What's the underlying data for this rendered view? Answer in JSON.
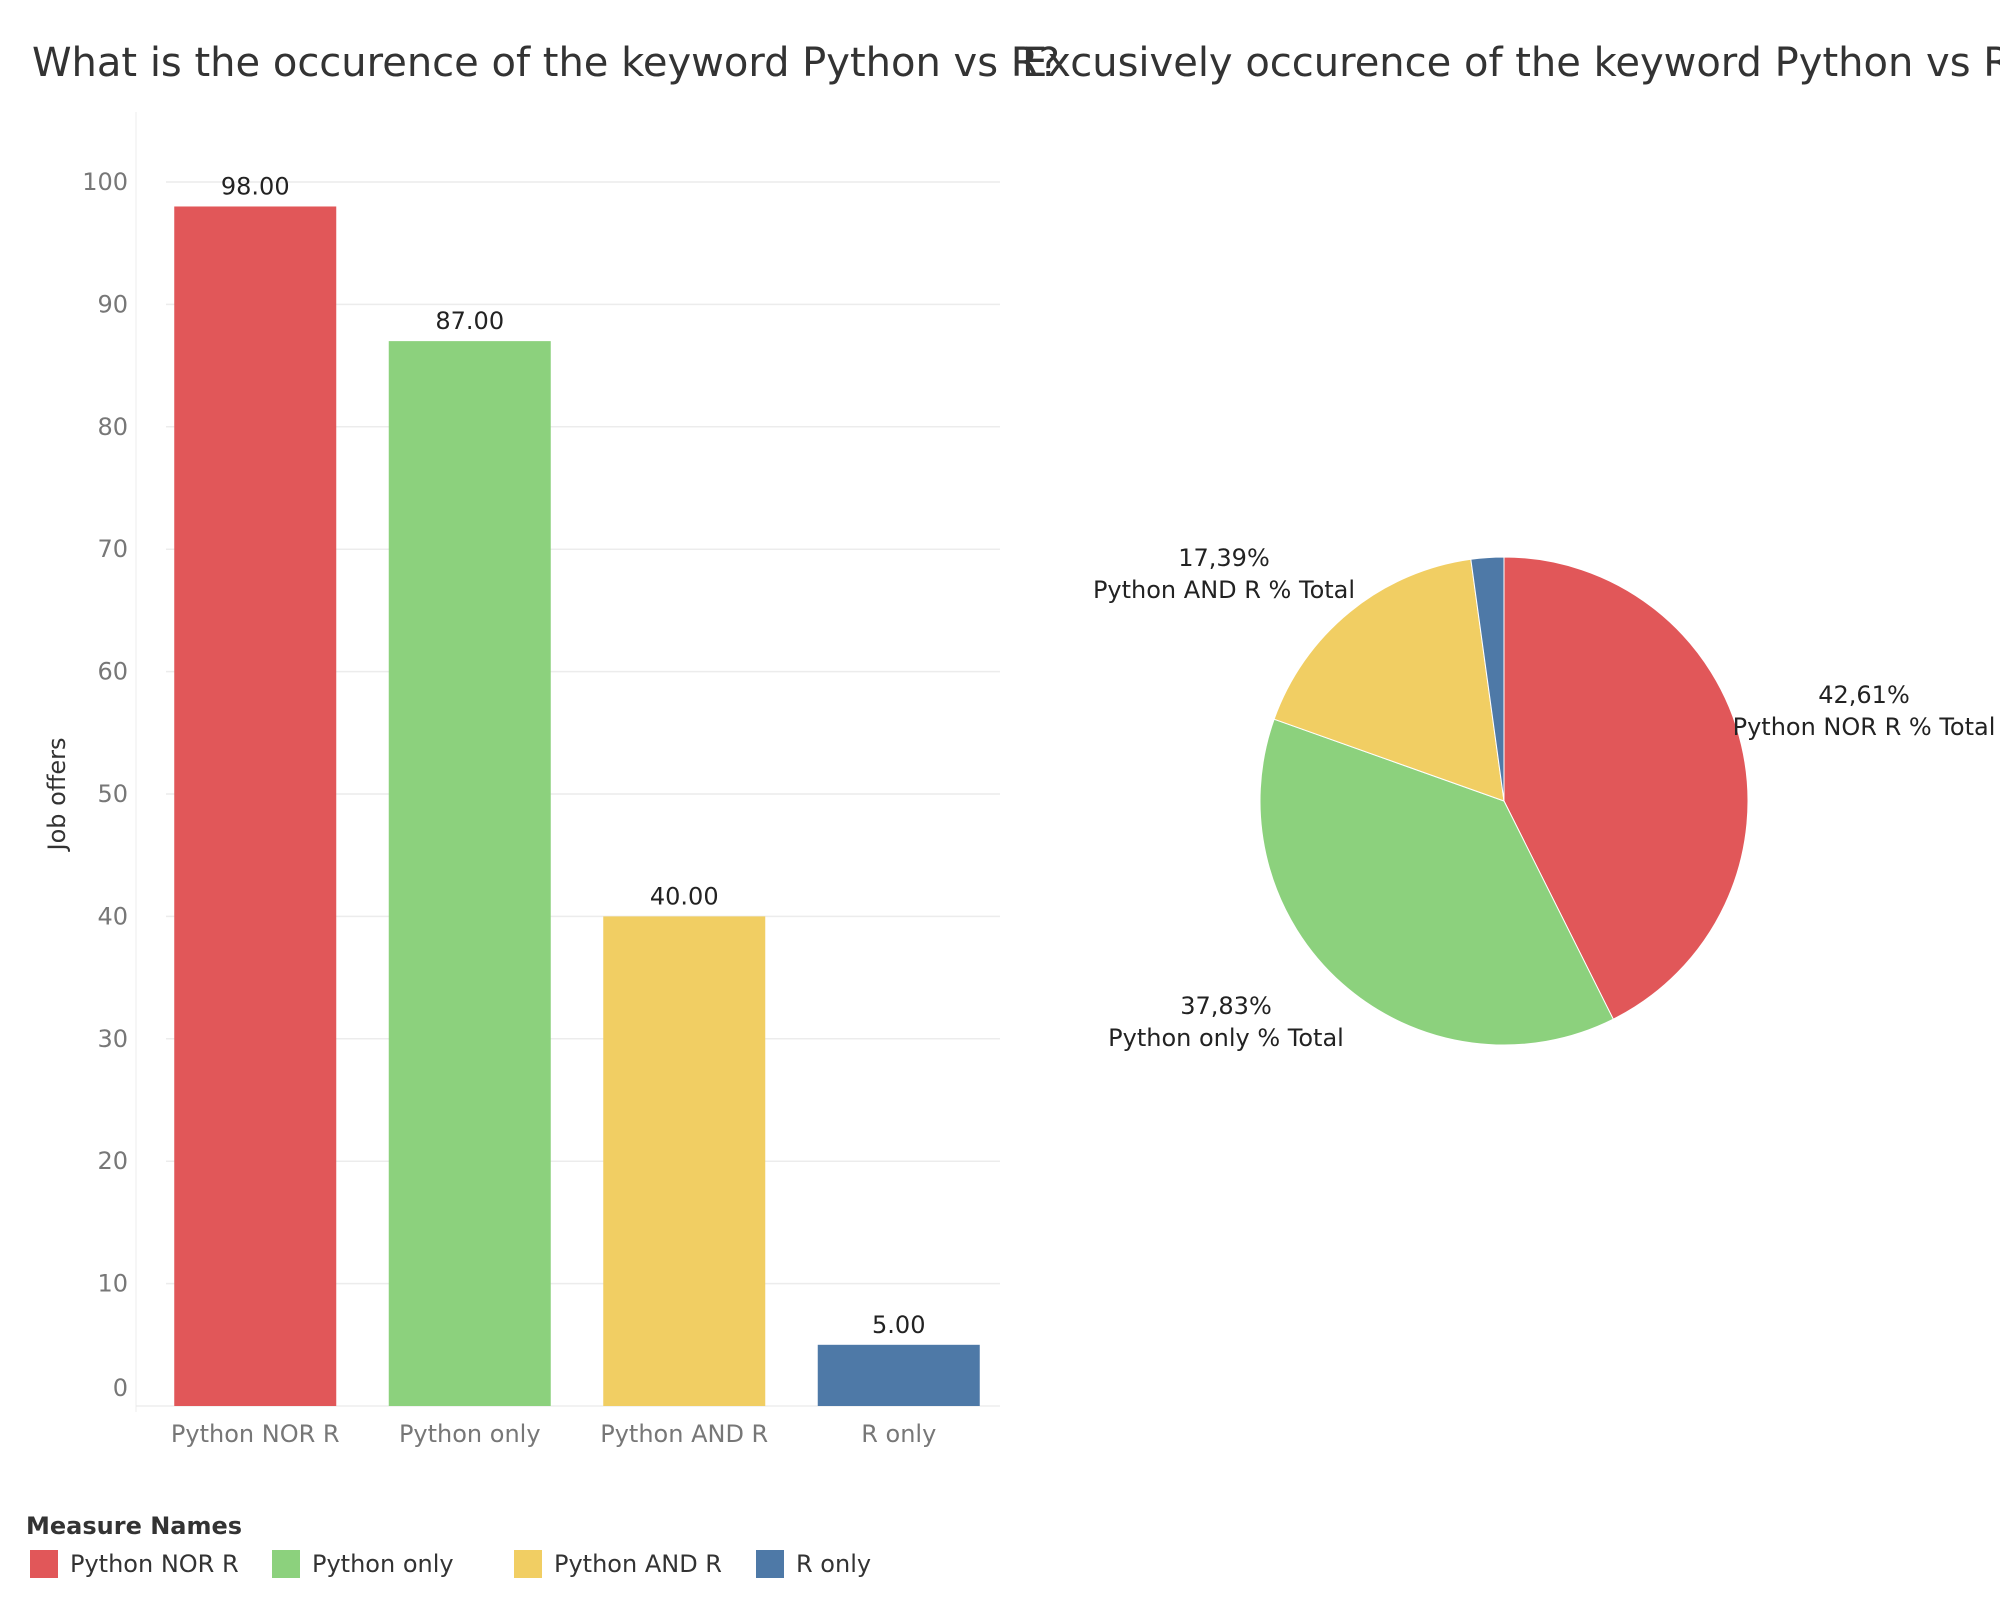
{
  "chart_data": [
    {
      "type": "bar",
      "title": "What is the occurence of the keyword Python vs R?",
      "ylabel": "Job offers",
      "categories": [
        "Python NOR R",
        "Python only",
        "Python AND R",
        "R only"
      ],
      "values": [
        98,
        87,
        40,
        5
      ],
      "value_labels": [
        "98.00",
        "87.00",
        "40.00",
        "5.00"
      ],
      "colors": [
        "#e15759",
        "#8cd17d",
        "#f1ce63",
        "#4e79a7"
      ],
      "ylim": [
        0,
        100
      ],
      "yticks": [
        0,
        10,
        20,
        30,
        40,
        50,
        60,
        70,
        80,
        90,
        100
      ],
      "grid": true
    },
    {
      "type": "pie",
      "title": "Excusively occurence of the keyword Python vs R",
      "slices": [
        {
          "category": "Python NOR R",
          "percent": 42.61,
          "label": "42,61%",
          "sublabel": "Python NOR R % Total",
          "color": "#e15759"
        },
        {
          "category": "Python only",
          "percent": 37.83,
          "label": "37,83%",
          "sublabel": "Python only % Total",
          "color": "#8cd17d"
        },
        {
          "category": "Python AND R",
          "percent": 17.39,
          "label": "17,39%",
          "sublabel": "Python AND R % Total",
          "color": "#f1ce63"
        },
        {
          "category": "R only",
          "percent": 2.17,
          "label": "",
          "sublabel": "",
          "color": "#4e79a7"
        }
      ]
    }
  ],
  "legend": {
    "title": "Measure Names",
    "placement": "bottom-left",
    "items": [
      {
        "label": "Python NOR R",
        "color": "#e15759"
      },
      {
        "label": "Python only",
        "color": "#8cd17d"
      },
      {
        "label": "Python AND R",
        "color": "#f1ce63"
      },
      {
        "label": "R only",
        "color": "#4e79a7"
      }
    ]
  }
}
